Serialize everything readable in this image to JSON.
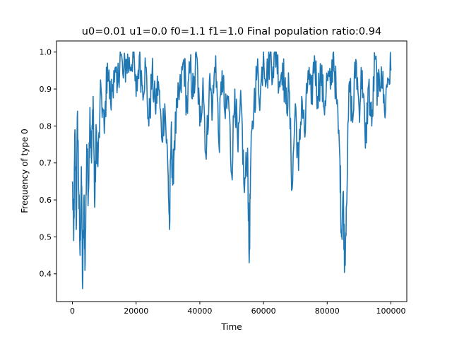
{
  "chart_data": {
    "type": "line",
    "title": "u0=0.01 u1=0.0 f0=1.1 f1=1.0 Final population ratio:0.94",
    "xlabel": "Time",
    "ylabel": "Frequency of type 0",
    "xlim": [
      -5000,
      105000
    ],
    "ylim": [
      0.325,
      1.03
    ],
    "x_ticks": [
      0,
      20000,
      40000,
      60000,
      80000,
      100000
    ],
    "x_tick_labels": [
      "0",
      "20000",
      "40000",
      "60000",
      "80000",
      "100000"
    ],
    "y_ticks": [
      0.4,
      0.5,
      0.6,
      0.7,
      0.8,
      0.9,
      1.0
    ],
    "y_tick_labels": [
      "0.4",
      "0.5",
      "0.6",
      "0.7",
      "0.8",
      "0.9",
      "1.0"
    ],
    "grid": false,
    "series": [
      {
        "color": "#1f77b4",
        "x": [
          0,
          400,
          800,
          1200,
          1600,
          2000,
          2400,
          2800,
          3200,
          3600,
          4000,
          4500,
          5000,
          5500,
          6000,
          6500,
          7000,
          7500,
          8000,
          9000,
          10000,
          11000,
          12000,
          13000,
          14000,
          15000,
          16000,
          17000,
          18000,
          19000,
          20000,
          21000,
          22000,
          23000,
          24000,
          25000,
          26000,
          27000,
          28000,
          29000,
          30000,
          30500,
          31000,
          31500,
          32000,
          33000,
          34000,
          35000,
          36000,
          37000,
          38000,
          39000,
          40000,
          41000,
          42000,
          43000,
          44000,
          45000,
          46000,
          47000,
          48000,
          49000,
          50000,
          51000,
          52000,
          53000,
          54000,
          55000,
          55500,
          56000,
          57000,
          58000,
          59000,
          60000,
          61000,
          62000,
          63000,
          64000,
          65000,
          66000,
          67000,
          68000,
          69000,
          70000,
          71000,
          72000,
          73000,
          74000,
          75000,
          76000,
          77000,
          78000,
          79000,
          80000,
          81000,
          82000,
          83000,
          84000,
          84500,
          85000,
          85500,
          86000,
          87000,
          88000,
          89000,
          90000,
          91000,
          92000,
          93000,
          94000,
          95000,
          96000,
          97000,
          98000,
          99000,
          100000
        ],
        "y": [
          0.65,
          0.49,
          0.79,
          0.52,
          0.84,
          0.62,
          0.45,
          0.69,
          0.36,
          0.6,
          0.43,
          0.75,
          0.62,
          0.85,
          0.7,
          0.88,
          0.58,
          0.79,
          0.69,
          0.9,
          0.78,
          0.97,
          0.86,
          0.95,
          0.89,
          1.0,
          0.93,
          0.98,
          0.96,
          1.0,
          0.88,
          0.99,
          0.91,
          0.96,
          0.8,
          0.94,
          0.85,
          0.92,
          0.77,
          0.86,
          0.68,
          0.52,
          0.79,
          0.64,
          0.76,
          0.85,
          0.9,
          0.98,
          0.84,
          0.96,
          0.88,
          0.99,
          0.8,
          0.93,
          0.71,
          0.92,
          0.85,
          0.99,
          0.75,
          0.95,
          0.82,
          0.88,
          0.67,
          0.9,
          0.73,
          0.86,
          0.62,
          0.74,
          0.43,
          0.7,
          0.86,
          0.95,
          0.88,
          1.0,
          0.93,
          0.99,
          0.96,
          1.0,
          0.92,
          0.97,
          0.86,
          0.9,
          0.63,
          0.86,
          0.68,
          0.88,
          0.77,
          0.95,
          0.86,
          0.99,
          0.88,
          0.95,
          0.85,
          0.93,
          0.9,
          1.0,
          0.86,
          0.71,
          0.5,
          0.62,
          0.43,
          0.58,
          0.92,
          0.81,
          0.98,
          0.85,
          0.95,
          0.74,
          0.91,
          0.8,
          0.98,
          0.88,
          0.96,
          0.84,
          0.93,
          0.95
        ]
      }
    ]
  }
}
